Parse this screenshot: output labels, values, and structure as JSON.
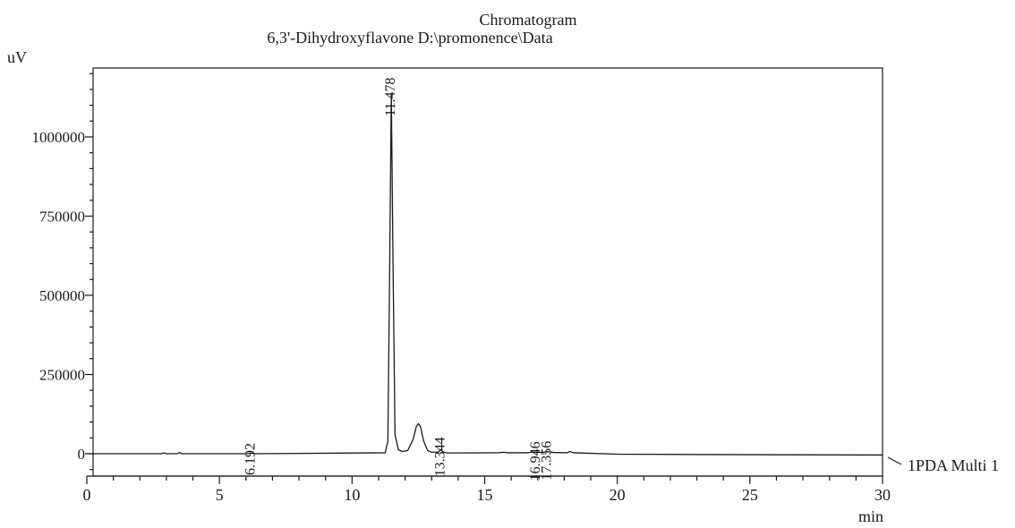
{
  "chart_data": {
    "type": "line",
    "title": "Chromatogram",
    "subtitle": "6,3'-Dihydroxyflavone D:\\promonence\\Data",
    "xlabel": "min",
    "ylabel": "uV",
    "xlim": [
      0,
      30
    ],
    "ylim": [
      -72000,
      1215000
    ],
    "x_ticks": [
      0,
      5,
      10,
      15,
      20,
      25,
      30
    ],
    "y_ticks": [
      0,
      250000,
      500000,
      750000,
      1000000
    ],
    "x_tick_labels": [
      "0",
      "5",
      "10",
      "15",
      "20",
      "25",
      "30"
    ],
    "y_tick_labels": [
      "0",
      "250000",
      "500000",
      "750000",
      "1000000"
    ],
    "grid": false,
    "series": [
      {
        "name": "1PDA Multi 1",
        "x": [
          0,
          2.8,
          2.9,
          3.0,
          3.4,
          3.5,
          3.6,
          6.1,
          6.2,
          6.3,
          11.25,
          11.35,
          11.42,
          11.48,
          11.55,
          11.62,
          11.75,
          11.9,
          12.1,
          12.3,
          12.42,
          12.5,
          12.58,
          12.7,
          12.85,
          13.0,
          13.25,
          13.34,
          13.45,
          13.6,
          15.5,
          15.7,
          15.9,
          16.6,
          16.75,
          16.95,
          17.2,
          17.36,
          17.6,
          18.1,
          18.22,
          18.35,
          20,
          25,
          30
        ],
        "y": [
          0,
          0,
          2500,
          0,
          0,
          3500,
          0,
          0,
          2000,
          0,
          3000,
          40000,
          600000,
          1135000,
          560000,
          60000,
          12000,
          7000,
          10000,
          45000,
          85000,
          95000,
          85000,
          40000,
          10000,
          5000,
          5000,
          13000,
          5000,
          2500,
          3000,
          4500,
          3000,
          3000,
          4500,
          4000,
          4500,
          6500,
          4000,
          3000,
          7000,
          3000,
          -1500,
          -3000,
          -4000
        ]
      }
    ],
    "peak_labels": [
      {
        "x": 6.192,
        "y": 0,
        "label": "6.192"
      },
      {
        "x": 11.478,
        "y": 1135000,
        "label": "11.478"
      },
      {
        "x": 13.344,
        "y": 13000,
        "label": "13.344"
      },
      {
        "x": 16.946,
        "y": 4500,
        "label": "16.946"
      },
      {
        "x": 17.356,
        "y": 6500,
        "label": "17.356"
      }
    ]
  }
}
